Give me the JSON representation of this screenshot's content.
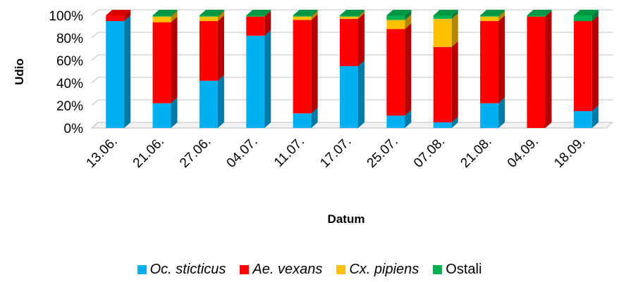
{
  "chart_data": {
    "type": "bar",
    "stacked": "percent",
    "style": "3d-column",
    "title": "",
    "xlabel": "Datum",
    "ylabel": "Udio",
    "ylim": [
      0,
      100
    ],
    "yticks": [
      "0%",
      "20%",
      "40%",
      "60%",
      "80%",
      "100%"
    ],
    "grid": true,
    "legend_position": "bottom",
    "categories": [
      "13.06.",
      "21.06.",
      "27.06.",
      "04.07.",
      "11.07.",
      "17.07.",
      "25.07.",
      "07.08.",
      "21.08.",
      "04.09.",
      "18.09."
    ],
    "series": [
      {
        "name": "Oc. sticticus",
        "italic": true,
        "color": "#00B0F0",
        "values": [
          95,
          22,
          42,
          82,
          13,
          55,
          11,
          5,
          22,
          0,
          15
        ]
      },
      {
        "name": "Ae. vexans",
        "italic": true,
        "color": "#FF0000",
        "values": [
          5,
          72,
          53,
          17,
          83,
          42,
          77,
          67,
          73,
          99,
          80
        ]
      },
      {
        "name": "Cx. pipiens",
        "italic": true,
        "color": "#FFC000",
        "values": [
          0,
          5,
          4,
          0,
          3,
          2,
          8,
          25,
          4,
          0,
          0
        ]
      },
      {
        "name": "Ostali",
        "italic": false,
        "color": "#00B050",
        "values": [
          0,
          1,
          1,
          1,
          1,
          1,
          4,
          3,
          1,
          1,
          5
        ]
      }
    ]
  }
}
